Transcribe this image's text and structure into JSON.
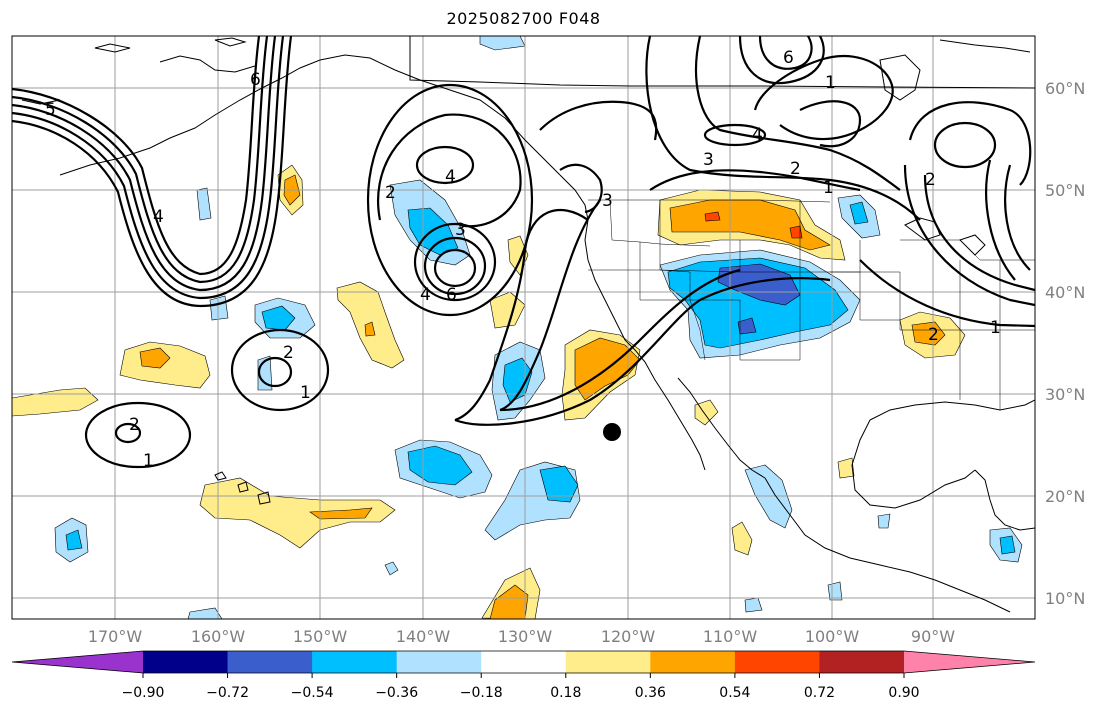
{
  "title": "2025082700 F048",
  "lon_labels": [
    "170°W",
    "160°W",
    "150°W",
    "140°W",
    "130°W",
    "120°W",
    "110°W",
    "100°W",
    "90°W"
  ],
  "lat_labels": [
    "60°N",
    "50°N",
    "40°N",
    "30°N",
    "20°N",
    "10°N"
  ],
  "colorbar": {
    "colors": [
      "#9a32cd",
      "#00008b",
      "#3a5fcd",
      "#00bfff",
      "#b0e2ff",
      "#ffffff",
      "#ffec8b",
      "#ffa500",
      "#ff4500",
      "#b22222",
      "#ff82ab"
    ],
    "tick_labels": [
      "−0.90",
      "−0.72",
      "−0.54",
      "−0.36",
      "−0.18",
      "0.18",
      "0.36",
      "0.54",
      "0.72",
      "0.90"
    ]
  },
  "contour_labels": {
    "c1": "3",
    "c2": "2",
    "c3": "1",
    "c4": "6",
    "c5": "4",
    "c6": "2",
    "c7": "1",
    "c8": "3",
    "c9": "5"
  },
  "marker": "black-dot"
}
